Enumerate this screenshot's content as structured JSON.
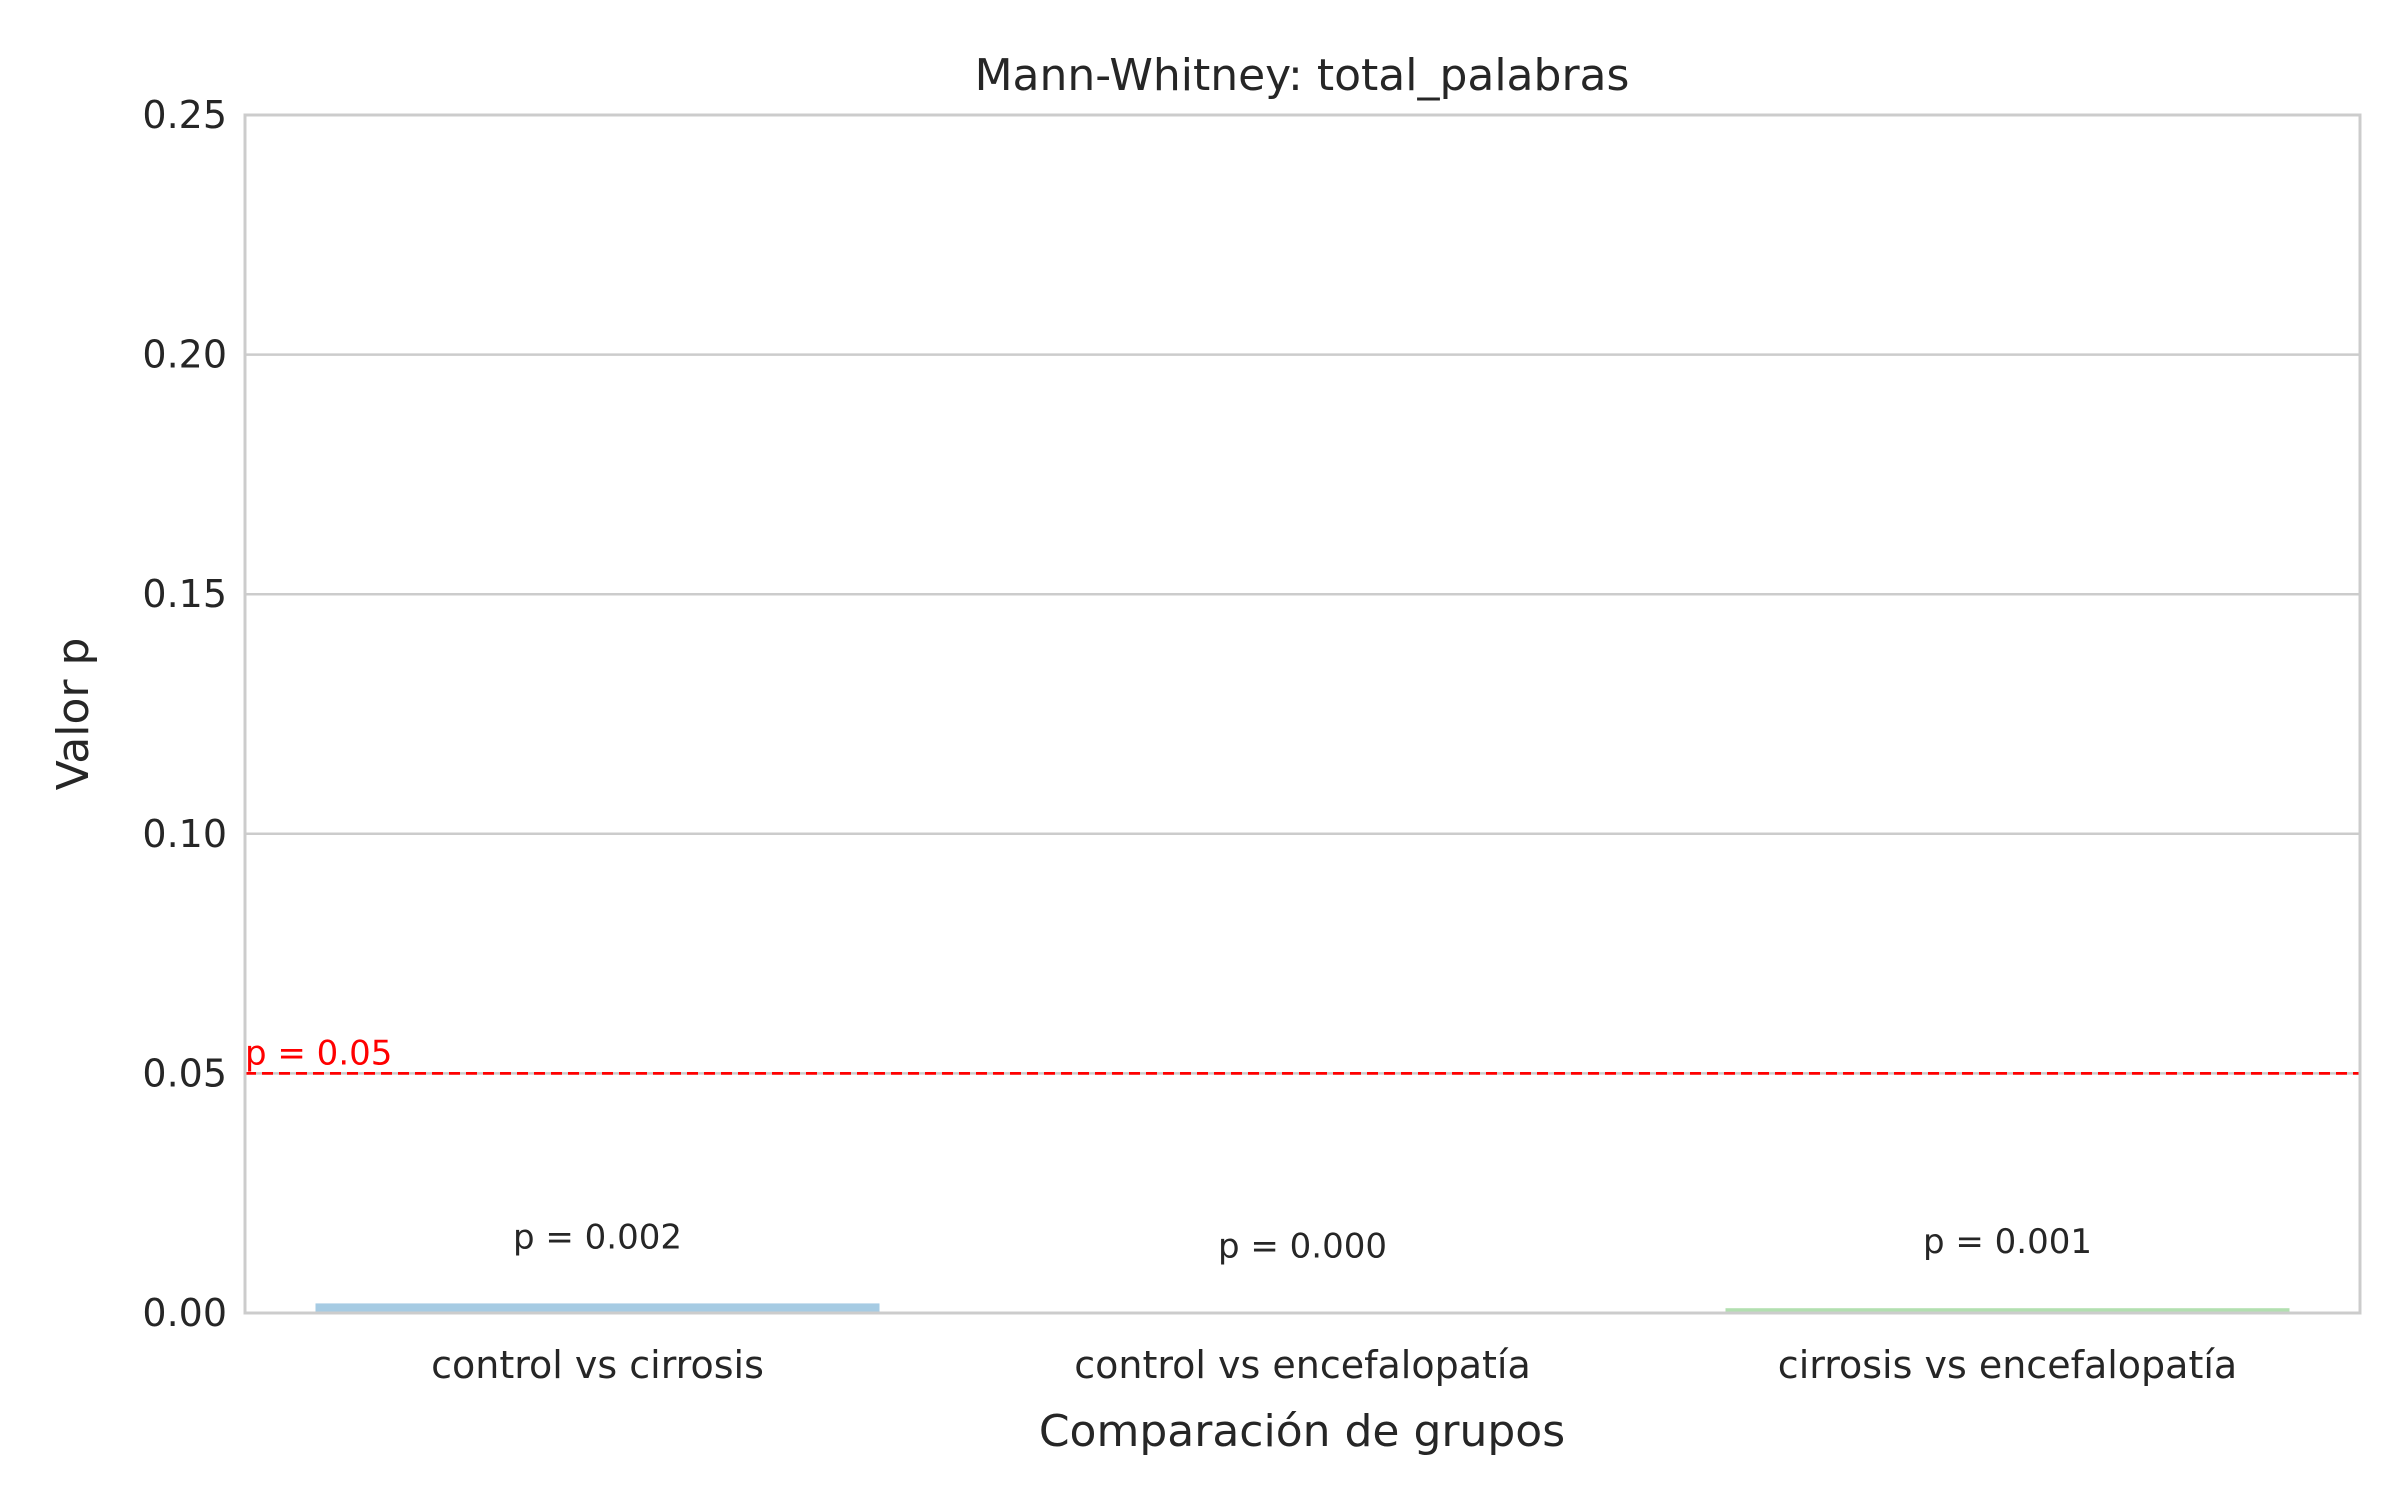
{
  "chart_data": {
    "type": "bar",
    "title": "Mann-Whitney: total_palabras",
    "xlabel": "Comparación de grupos",
    "ylabel": "Valor p",
    "categories": [
      "control vs cirrosis",
      "control vs encefalopatía",
      "cirrosis vs encefalopatía"
    ],
    "values": [
      0.002,
      0.0001,
      0.001
    ],
    "bar_labels": [
      "p = 0.002",
      "p = 0.000",
      "p = 0.001"
    ],
    "bar_colors": [
      "#a6cbe3",
      "#fdbf6f",
      "#b2dfb0"
    ],
    "ylim": [
      0,
      0.25
    ],
    "yticks": [
      0,
      0.05,
      0.1,
      0.15,
      0.2,
      0.25
    ],
    "ytick_labels": [
      "0.00",
      "0.05",
      "0.10",
      "0.15",
      "0.20",
      "0.25"
    ],
    "threshold": {
      "value": 0.05,
      "label": "p = 0.05",
      "color": "#ff0000"
    },
    "grid": "y",
    "legend": "none"
  }
}
